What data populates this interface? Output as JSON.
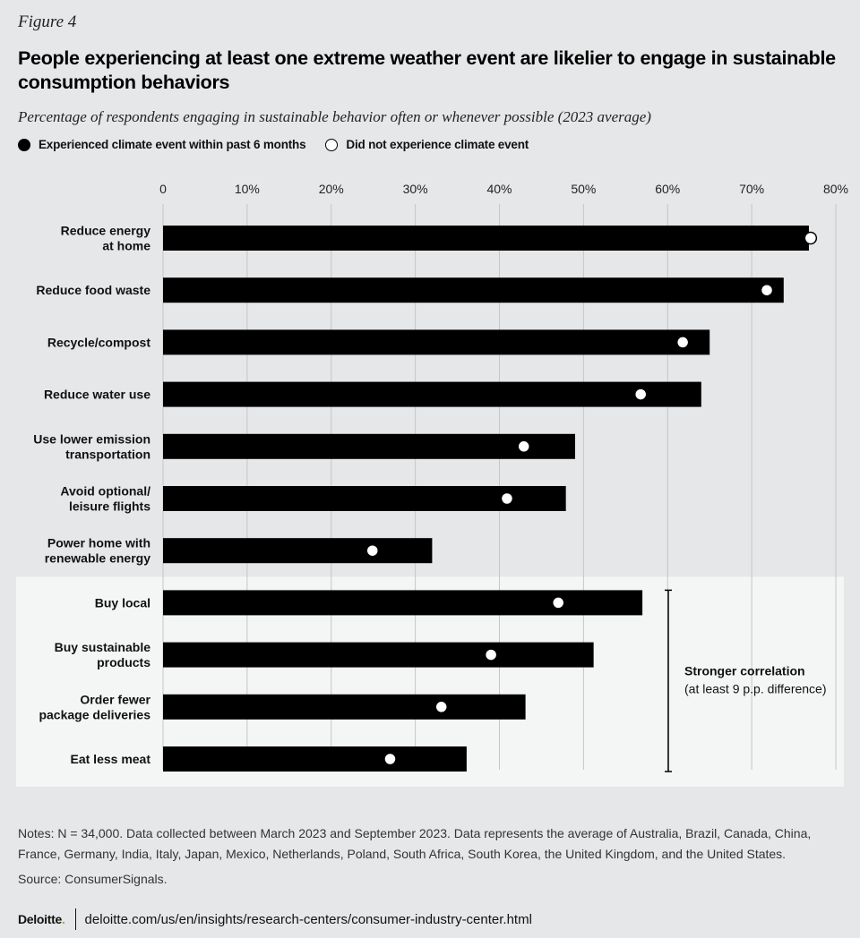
{
  "figure_label": "Figure 4",
  "title": "People experiencing at least one extreme weather event are likelier to engage in sustainable consumption behaviors",
  "subtitle": "Percentage of respondents engaging in sustainable behavior often or whenever possible (2023 average)",
  "legend": {
    "experienced": "Experienced climate event within past 6 months",
    "not_experienced": "Did not experience climate event"
  },
  "chart_data": {
    "type": "bar",
    "orientation": "horizontal",
    "xlim": [
      0,
      80
    ],
    "ticks": [
      0,
      10,
      20,
      30,
      40,
      50,
      60,
      70,
      80
    ],
    "tick_labels": [
      "0",
      "10%",
      "20%",
      "30%",
      "40%",
      "50%",
      "60%",
      "70%",
      "80%"
    ],
    "categories": [
      [
        "Reduce energy",
        "at home"
      ],
      [
        "Reduce food waste"
      ],
      [
        "Recycle/compost"
      ],
      [
        "Reduce water use"
      ],
      [
        "Use lower emission",
        "transportation"
      ],
      [
        "Avoid optional/",
        "leisure flights"
      ],
      [
        "Power home with",
        "renewable energy"
      ],
      [
        "Buy local"
      ],
      [
        "Buy sustainable",
        "products"
      ],
      [
        "Order fewer",
        "package deliveries"
      ],
      [
        "Eat less meat"
      ]
    ],
    "series": [
      {
        "name": "Experienced climate event within past 6 months",
        "marker": "bar",
        "values": [
          76.8,
          73.8,
          65.0,
          64.0,
          49.0,
          47.9,
          32.0,
          57.0,
          51.2,
          43.1,
          36.1
        ]
      },
      {
        "name": "Did not experience climate event",
        "marker": "open-circle",
        "values": [
          77.0,
          71.8,
          61.8,
          56.8,
          42.9,
          40.9,
          24.9,
          47.0,
          39.0,
          33.1,
          27.0
        ]
      }
    ],
    "highlight_group": {
      "from_index": 7,
      "to_index": 10,
      "label": "Stronger correlation",
      "sublabel": "(at least 9 p.p. difference)"
    }
  },
  "notes": "Notes: N = 34,000. Data collected between March 2023 and September 2023. Data represents the average of Australia, Brazil, Canada, China, France, Germany, India, Italy, Japan, Mexico, Netherlands, Poland, South Africa, South Korea, the United Kingdom, and the United States.",
  "source": "Source: ConsumerSignals.",
  "footer": {
    "brand": "Deloitte",
    "brand_dot": ".",
    "url": "deloitte.com/us/en/insights/research-centers/consumer-industry-center.html"
  },
  "colors": {
    "background": "#e6e7e8",
    "highlight_background": "#f4f5f5",
    "bar": "#000000",
    "marker_fill": "#ffffff"
  }
}
